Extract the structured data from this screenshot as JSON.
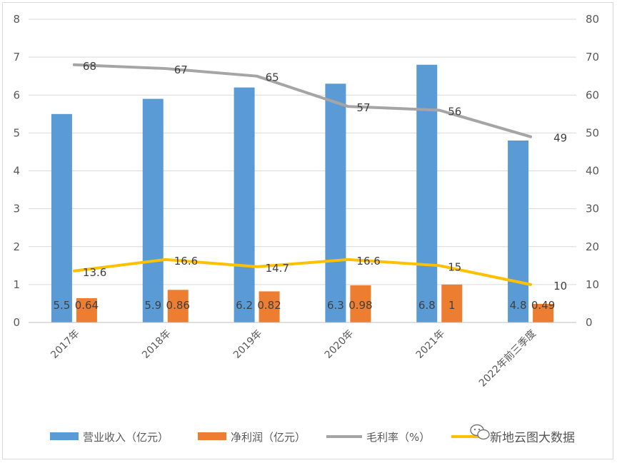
{
  "chart_data": {
    "type": "bar",
    "categories": [
      "2017年",
      "2018年",
      "2019年",
      "2020年",
      "2021年",
      "2022年前三季度"
    ],
    "series": [
      {
        "name": "营业收入（亿元）",
        "kind": "bar",
        "axis": "left",
        "color": "#5b9bd5",
        "values": [
          5.5,
          5.9,
          6.2,
          6.3,
          6.8,
          4.8
        ],
        "labels": [
          "5.5",
          "5.9",
          "6.2",
          "6.3",
          "6.8",
          "4.8"
        ]
      },
      {
        "name": "净利润（亿元）",
        "kind": "bar",
        "axis": "left",
        "color": "#ed7d31",
        "values": [
          0.64,
          0.86,
          0.82,
          0.98,
          1,
          0.49
        ],
        "labels": [
          "0.64",
          "0.86",
          "0.82",
          "0.98",
          "1",
          "0.49"
        ]
      },
      {
        "name": "毛利率（%）",
        "kind": "line",
        "axis": "right",
        "color": "#a5a5a5",
        "values": [
          68,
          67,
          65,
          57,
          56,
          49
        ],
        "labels": [
          "68",
          "67",
          "65",
          "57",
          "56",
          "49"
        ]
      },
      {
        "name": "",
        "kind": "line",
        "axis": "right",
        "color": "#ffc000",
        "values": [
          13.6,
          16.6,
          14.7,
          16.6,
          15,
          10
        ],
        "labels": [
          "13.6",
          "16.6",
          "14.7",
          "16.6",
          "15",
          "10"
        ]
      }
    ],
    "ylim_left": [
      0,
      8
    ],
    "yticks_left": [
      "0",
      "1",
      "2",
      "3",
      "4",
      "5",
      "6",
      "7",
      "8"
    ],
    "ylim_right": [
      0,
      80
    ],
    "yticks_right": [
      "0",
      "10",
      "20",
      "30",
      "40",
      "50",
      "60",
      "70",
      "80"
    ],
    "grid": true,
    "legend_position": "bottom"
  },
  "watermark": "新地云图大数据"
}
